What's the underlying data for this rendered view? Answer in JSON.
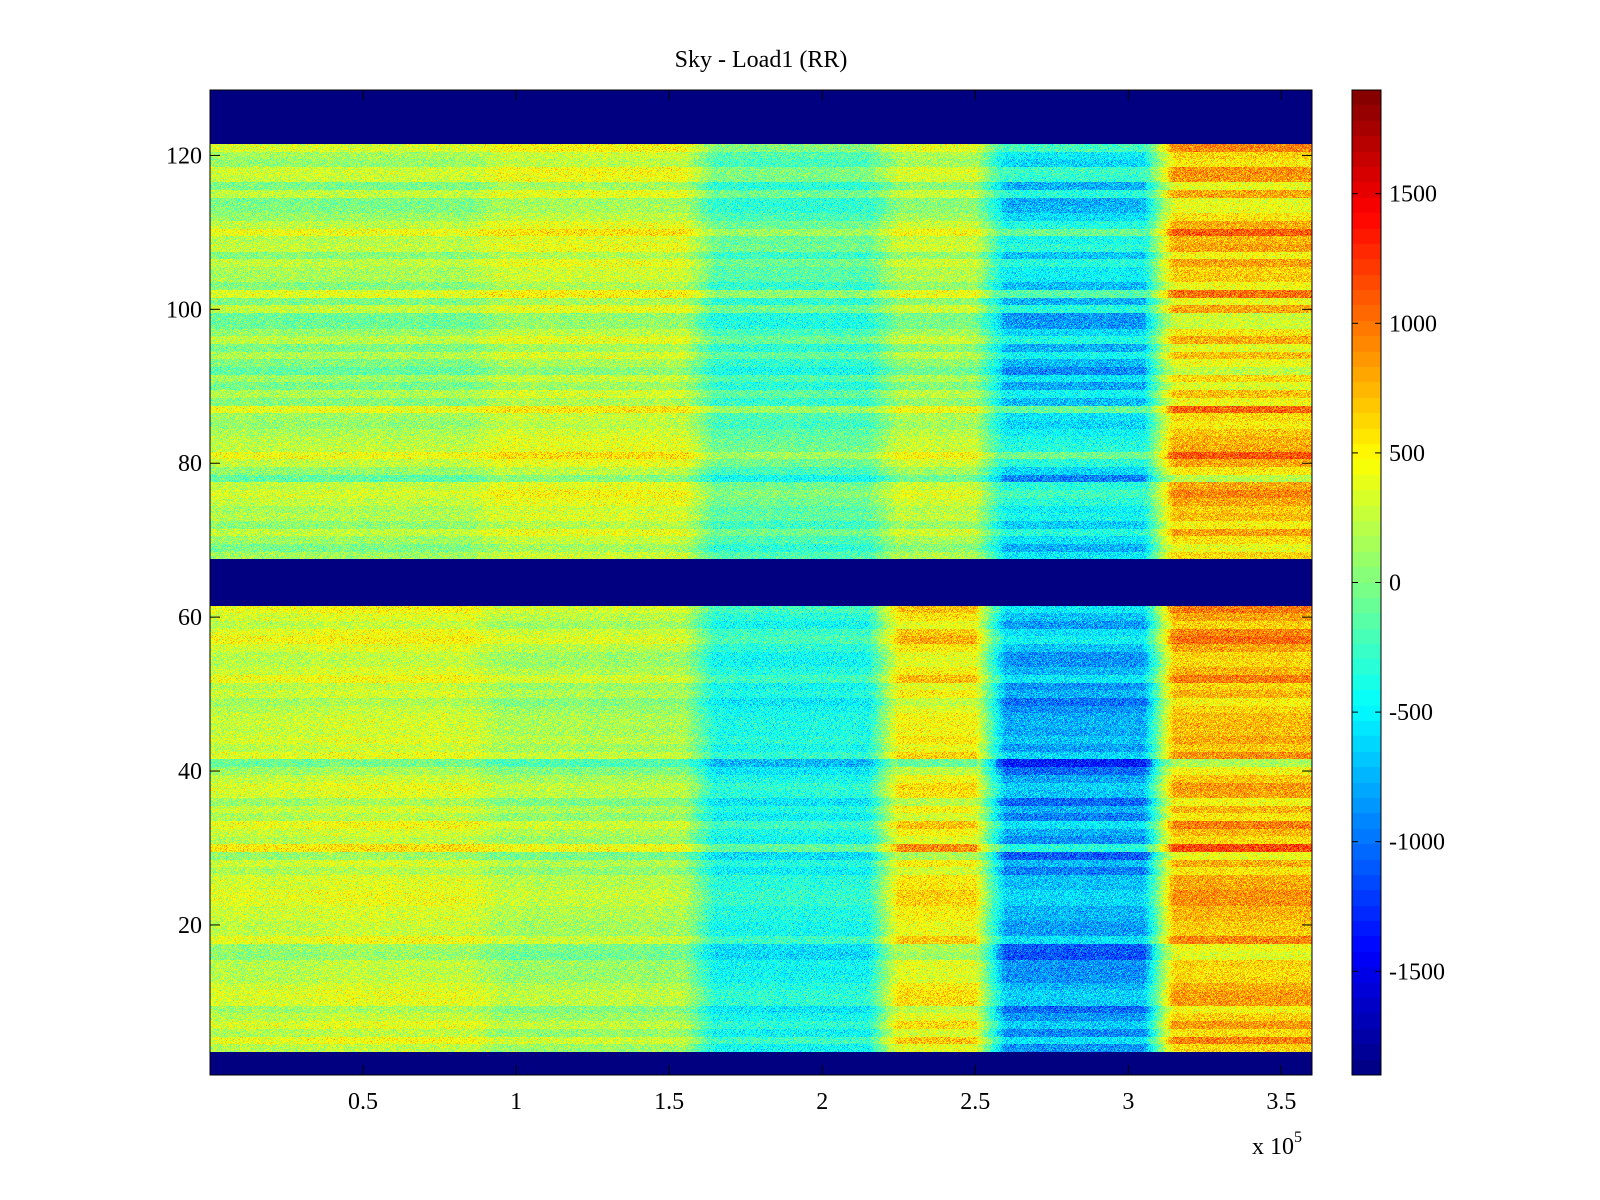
{
  "chart_data": {
    "type": "heatmap",
    "title": "Sky - Load1 (RR)",
    "xlabel": "",
    "ylabel": "",
    "x_multiplier_label": "x 10",
    "x_multiplier_exponent": "5",
    "xlim": [
      0,
      3.6
    ],
    "ylim": [
      0.5,
      128.5
    ],
    "x_ticks": [
      0.5,
      1,
      1.5,
      2,
      2.5,
      3,
      3.5
    ],
    "x_tick_labels": [
      "0.5",
      "1",
      "1.5",
      "2",
      "2.5",
      "3",
      "3.5"
    ],
    "y_ticks": [
      20,
      40,
      60,
      80,
      100,
      120
    ],
    "y_tick_labels": [
      "20",
      "40",
      "60",
      "80",
      "100",
      "120"
    ],
    "colormap": "jet",
    "clim": [
      -1900,
      1900
    ],
    "colorbar_ticks": [
      1500,
      1000,
      500,
      0,
      -500,
      -1000,
      -1500
    ],
    "colorbar_tick_labels": [
      "1500",
      "1000",
      "500",
      "0",
      "-500",
      "-1000",
      "-1500"
    ],
    "masked_rows": [
      [
        1,
        3
      ],
      [
        62,
        67
      ],
      [
        122,
        128
      ]
    ],
    "masked_value": -1900,
    "x_segments": [
      {
        "x": [
          0,
          0.35
        ],
        "mean_upper": 150,
        "mean_lower": 250
      },
      {
        "x": [
          0.35,
          0.9
        ],
        "mean_upper": 150,
        "mean_lower": 300
      },
      {
        "x": [
          0.9,
          1.6
        ],
        "mean_upper": 300,
        "mean_lower": 150
      },
      {
        "x": [
          1.6,
          2.2
        ],
        "mean_upper": -150,
        "mean_lower": -400
      },
      {
        "x": [
          2.2,
          2.55
        ],
        "mean_upper": 200,
        "mean_lower": 450
      },
      {
        "x": [
          2.55,
          3.1
        ],
        "mean_upper": -500,
        "mean_lower": -800
      },
      {
        "x": [
          3.1,
          3.6
        ],
        "mean_upper": 650,
        "mean_lower": 700
      }
    ],
    "grid": false,
    "colorbar_placement": "right"
  }
}
